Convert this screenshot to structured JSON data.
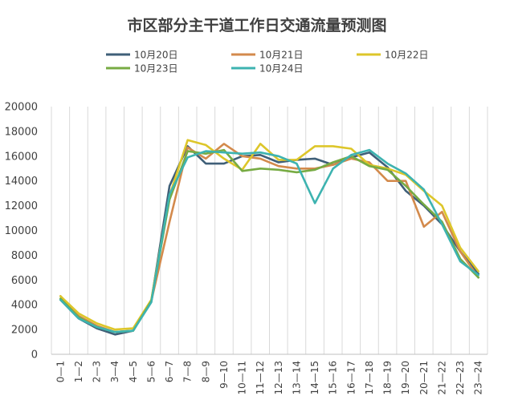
{
  "chart_data": {
    "type": "line",
    "title": "市区部分主干道工作日交通流量预测图",
    "xlabel": "",
    "ylabel": "",
    "ylim": [
      0,
      20000
    ],
    "yticks": [
      0,
      2000,
      4000,
      6000,
      8000,
      10000,
      12000,
      14000,
      16000,
      18000,
      20000
    ],
    "grid": "vertical",
    "legend_position": "top",
    "categories": [
      "0—1",
      "1—2",
      "2—3",
      "3—4",
      "4—5",
      "5—6",
      "6—7",
      "7—8",
      "8—9",
      "9—10",
      "10—11",
      "11—12",
      "12—13",
      "13—14",
      "14—15",
      "15—16",
      "16—17",
      "17—18",
      "18—19",
      "19—20",
      "20—21",
      "21—22",
      "22—23",
      "23—24"
    ],
    "series": [
      {
        "name": "10月20日",
        "color": "#3f5f78",
        "values": [
          4400,
          2900,
          2100,
          1600,
          1900,
          4300,
          13600,
          16800,
          15400,
          15400,
          16000,
          16100,
          15500,
          15700,
          15800,
          15300,
          15900,
          16300,
          15100,
          13200,
          12000,
          10500,
          8300,
          6500
        ]
      },
      {
        "name": "10月21日",
        "color": "#d38a4c",
        "values": [
          4700,
          3100,
          2300,
          1800,
          1900,
          4300,
          10700,
          16700,
          15800,
          17000,
          16000,
          15800,
          15200,
          15000,
          15000,
          15300,
          15800,
          15500,
          14000,
          14000,
          10300,
          11500,
          8300,
          6200
        ]
      },
      {
        "name": "10月22日",
        "color": "#ddc62a",
        "values": [
          4700,
          3300,
          2500,
          2000,
          2100,
          4400,
          12800,
          17300,
          16900,
          15800,
          14900,
          17000,
          15700,
          15700,
          16800,
          16800,
          16600,
          15300,
          15000,
          14500,
          13200,
          12000,
          8600,
          6700
        ]
      },
      {
        "name": "10月23日",
        "color": "#77ab43",
        "values": [
          4500,
          3000,
          2200,
          1800,
          1900,
          4300,
          12500,
          16400,
          16200,
          16500,
          14800,
          15000,
          14900,
          14700,
          14900,
          15500,
          16000,
          15200,
          14900,
          13600,
          12100,
          10700,
          7700,
          6200
        ]
      },
      {
        "name": "10月24日",
        "color": "#3db3b0",
        "values": [
          4400,
          2900,
          2200,
          1800,
          1900,
          4200,
          12900,
          15900,
          16400,
          16300,
          16200,
          16300,
          16000,
          15400,
          12200,
          15000,
          16100,
          16500,
          15400,
          14600,
          13300,
          10500,
          7500,
          6400
        ]
      }
    ]
  }
}
